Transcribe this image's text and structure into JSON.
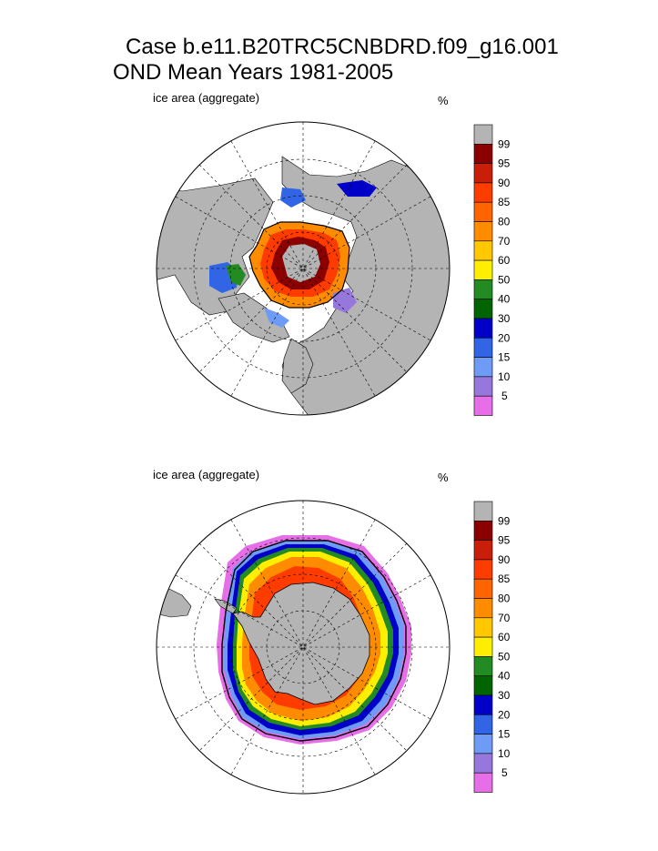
{
  "figure": {
    "title_line1": "Case b.e11.B20TRC5CNBDRD.f09_g16.001",
    "title_line2": "OND Mean   Years 1981-2005"
  },
  "panels": [
    {
      "id": "north",
      "label": "ice area  (aggregate)",
      "units": "%"
    },
    {
      "id": "south",
      "label": "ice area  (aggregate)",
      "units": "%"
    }
  ],
  "colorbar": {
    "labels": [
      "99",
      "95",
      "90",
      "85",
      "80",
      "70",
      "60",
      "50",
      "40",
      "30",
      "20",
      "15",
      "10",
      "5"
    ],
    "colors": [
      "#b4b4b4",
      "#8b0000",
      "#c81e0a",
      "#ff3c00",
      "#ff6400",
      "#ff8c00",
      "#ffc800",
      "#ffee00",
      "#228b22",
      "#006400",
      "#0000c8",
      "#3264e6",
      "#6e9bf5",
      "#9678dc",
      "#e66ee6"
    ]
  },
  "colors": {
    "land": "#b4b4b4",
    "ocean": "#ffffff",
    "grid": "#000000"
  }
}
